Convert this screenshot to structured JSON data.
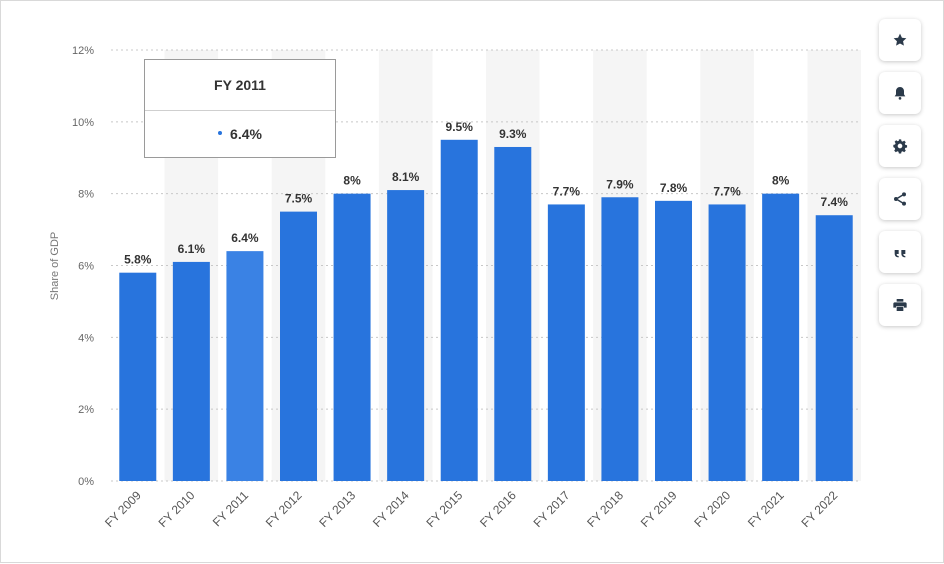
{
  "chart_data": {
    "type": "bar",
    "categories": [
      "FY 2009",
      "FY 2010",
      "FY 2011",
      "FY 2012",
      "FY 2013",
      "FY 2014",
      "FY 2015",
      "FY 2016",
      "FY 2017",
      "FY 2018",
      "FY 2019",
      "FY 2020",
      "FY 2021",
      "FY 2022"
    ],
    "values": [
      5.8,
      6.1,
      6.4,
      7.5,
      8,
      8.1,
      9.5,
      9.3,
      7.7,
      7.9,
      7.8,
      7.7,
      8,
      7.4
    ],
    "data_labels": [
      "5.8%",
      "6.1%",
      "6.4%",
      "7.5%",
      "8%",
      "8.1%",
      "9.5%",
      "9.3%",
      "7.7%",
      "7.9%",
      "7.8%",
      "7.7%",
      "8%",
      "7.4%"
    ],
    "ylabel": "Share of GDP",
    "ylim": [
      0,
      12
    ],
    "yticks": [
      "0%",
      "2%",
      "4%",
      "6%",
      "8%",
      "10%",
      "12%"
    ],
    "grid": true,
    "highlighted_category": "FY 2011"
  },
  "tooltip": {
    "title": "FY 2011",
    "value": "6.4%"
  },
  "toolbar": {
    "buttons": [
      {
        "name": "favorite-button",
        "icon": "star-icon"
      },
      {
        "name": "notification-button",
        "icon": "bell-icon"
      },
      {
        "name": "settings-button",
        "icon": "gear-icon"
      },
      {
        "name": "share-button",
        "icon": "share-icon"
      },
      {
        "name": "cite-button",
        "icon": "quote-icon"
      },
      {
        "name": "print-button",
        "icon": "printer-icon"
      }
    ]
  },
  "colors": {
    "bar": "#2874dd",
    "bar_highlight": "#3a82e4",
    "column_band": "#f5f5f5",
    "grid": "#c8c8c8",
    "icon": "#2b3a4a",
    "dot": "#2874dd"
  }
}
